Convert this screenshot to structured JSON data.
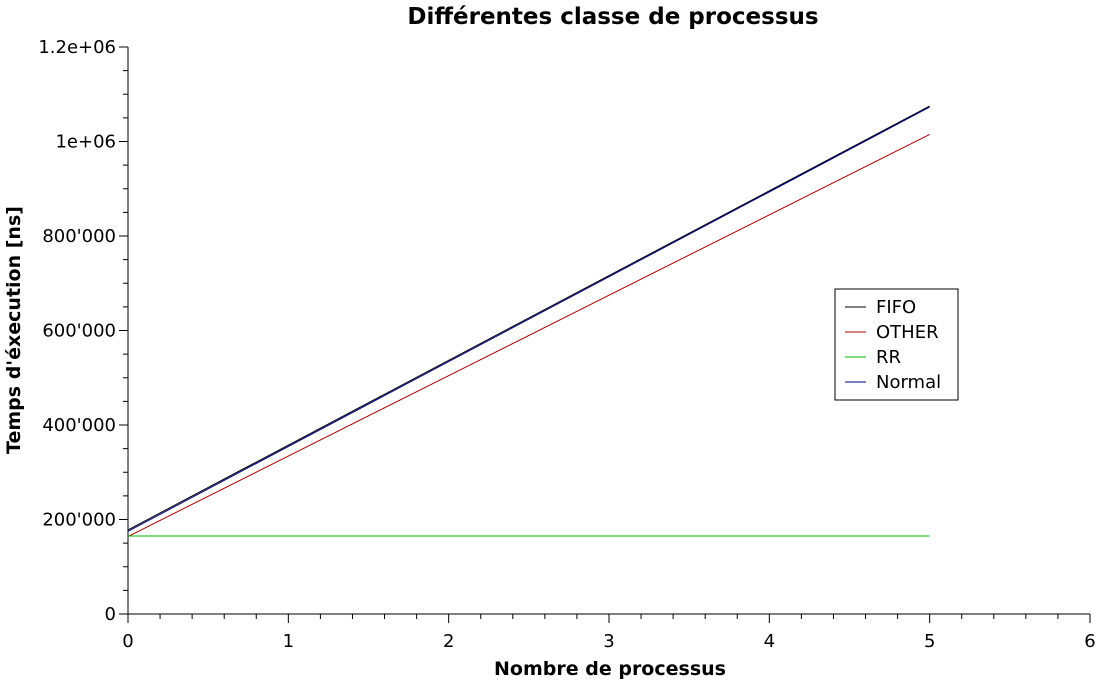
{
  "chart_data": {
    "type": "line",
    "title": "Différentes classe de processus",
    "xlabel": "Nombre de processus",
    "ylabel": "Temps d'éxecution [ns]",
    "xlim": [
      0,
      6
    ],
    "ylim": [
      0,
      1200000
    ],
    "x_ticks": [
      "0",
      "1",
      "2",
      "3",
      "4",
      "5",
      "6"
    ],
    "y_ticks": [
      {
        "value": 0,
        "label": "0"
      },
      {
        "value": 200000,
        "label": "200'000"
      },
      {
        "value": 400000,
        "label": "400'000"
      },
      {
        "value": 600000,
        "label": "600'000"
      },
      {
        "value": 800000,
        "label": "800'000"
      },
      {
        "value": 1000000,
        "label": "1e+06"
      },
      {
        "value": 1200000,
        "label": "1.2e+06"
      }
    ],
    "legend_position": "right",
    "grid": false,
    "series": [
      {
        "name": "FIFO",
        "color": "#000000",
        "x": [
          0,
          5
        ],
        "y": [
          178000,
          1075000
        ]
      },
      {
        "name": "OTHER",
        "color": "#aa0000",
        "x": [
          0,
          5
        ],
        "y": [
          164000,
          1015000
        ]
      },
      {
        "name": "RR",
        "color": "#00bb00",
        "x": [
          0,
          5
        ],
        "y": [
          165000,
          165000
        ]
      },
      {
        "name": "Normal",
        "color": "#000080",
        "x": [
          0,
          5
        ],
        "y": [
          175000,
          1073000
        ]
      }
    ]
  }
}
